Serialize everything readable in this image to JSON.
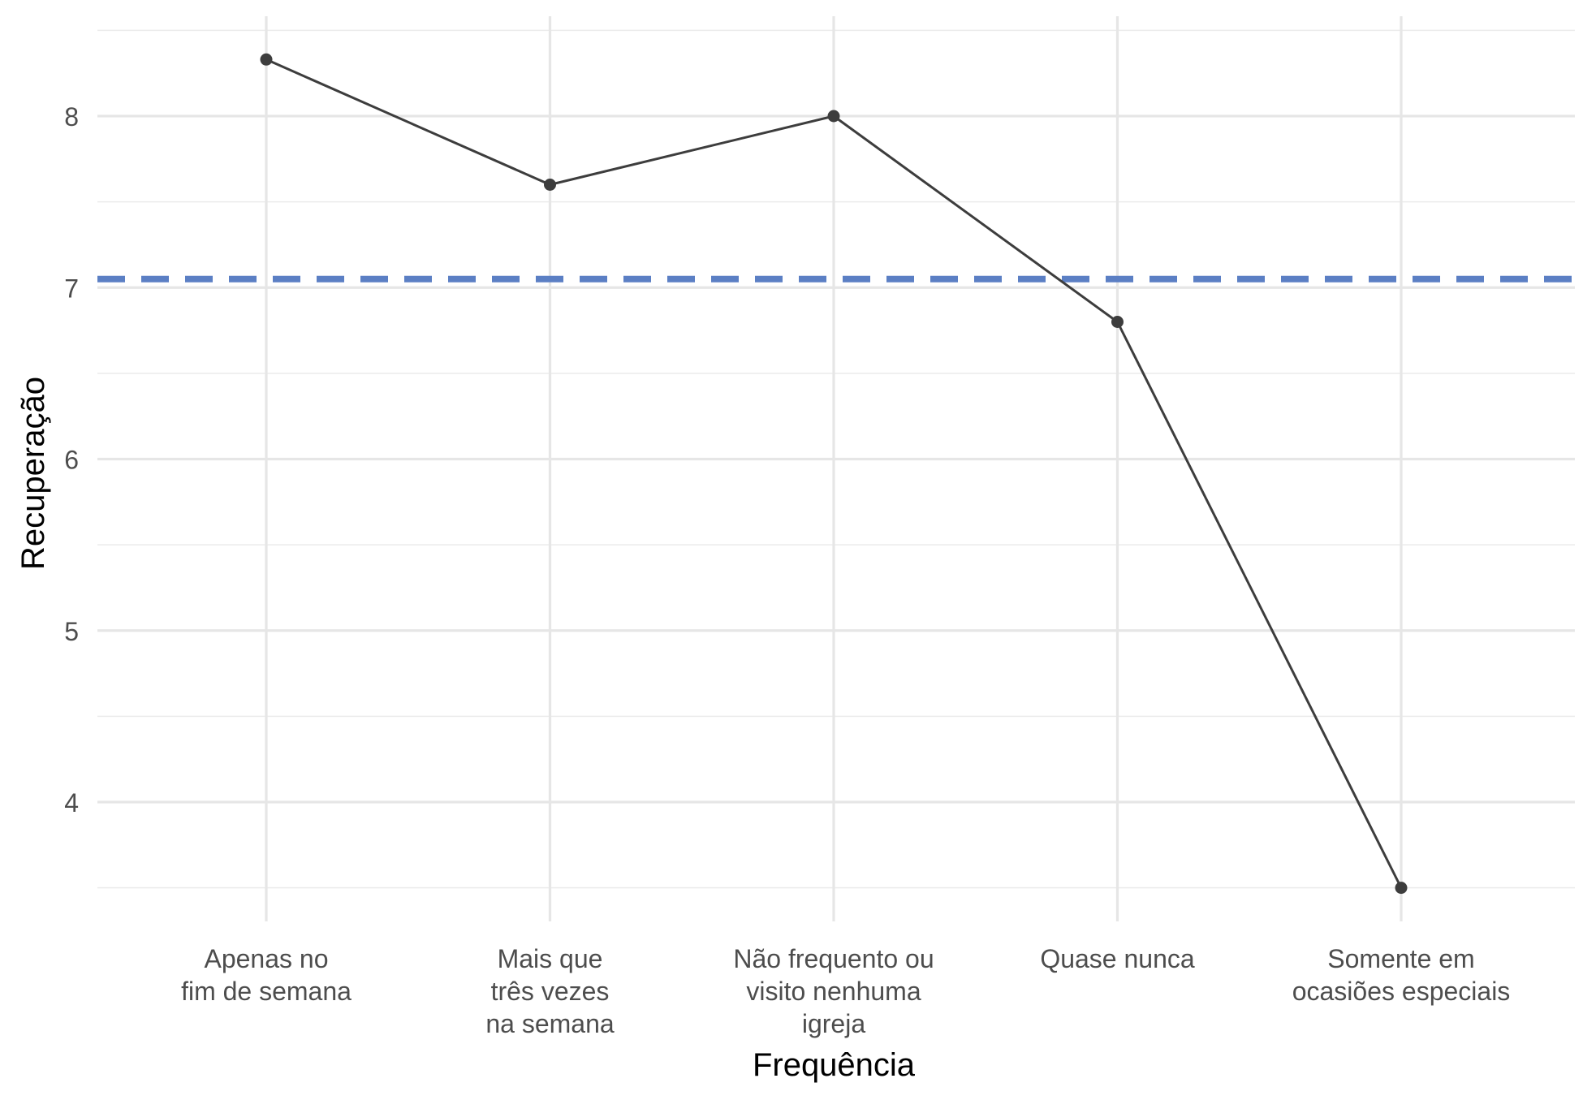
{
  "chart_data": {
    "type": "line",
    "title": "",
    "xlabel": "Frequência",
    "ylabel": "Recuperação",
    "categories": [
      [
        "Apenas no",
        "fim de semana"
      ],
      [
        "Mais que",
        "três vezes",
        "na semana"
      ],
      [
        "Não frequento ou",
        "visito nenhuma",
        "igreja"
      ],
      [
        "Quase nunca"
      ],
      [
        "Somente em",
        "ocasiões especiais"
      ]
    ],
    "values": [
      8.33,
      7.6,
      8.0,
      6.8,
      3.5
    ],
    "ylim": [
      3.25,
      8.5
    ],
    "yticks": [
      4,
      5,
      6,
      7,
      8
    ],
    "reference_line": {
      "y": 7.05,
      "style": "dashed",
      "color": "#5b7fc4"
    },
    "series_color": "#3d3d3d",
    "grid": true,
    "legend": "none"
  }
}
